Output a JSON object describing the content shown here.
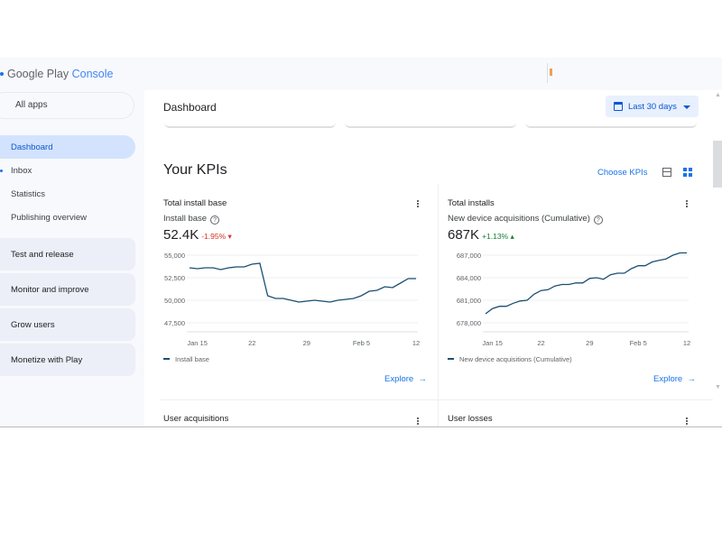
{
  "header": {
    "logo_main": "Google Play",
    "logo_accent": "Console"
  },
  "sidebar": {
    "all_apps": "All apps",
    "items": [
      {
        "label": "Dashboard"
      },
      {
        "label": "Inbox"
      },
      {
        "label": "Statistics"
      },
      {
        "label": "Publishing overview"
      }
    ],
    "groups": [
      {
        "label": "Test and release"
      },
      {
        "label": "Monitor and improve"
      },
      {
        "label": "Grow users"
      },
      {
        "label": "Monetize with Play"
      }
    ]
  },
  "main": {
    "title": "Dashboard",
    "date_range": "Last 30 days",
    "kpis_title": "Your KPIs",
    "choose_kpis": "Choose KPIs",
    "explore": "Explore",
    "explore_arrow": "→",
    "more_cards": [
      "User acquisitions",
      "User losses"
    ]
  },
  "colors": {
    "line": "#1b4f72",
    "accent": "#1a73e8",
    "negative": "#d93025",
    "positive": "#188038"
  },
  "chart_data": [
    {
      "type": "line",
      "title": "Total install base",
      "metric": "Install base",
      "value": "52.4K",
      "change": "-1.95%",
      "change_dir": "down",
      "legend": "Install base",
      "ylim": [
        47500,
        55000
      ],
      "yticks": [
        "55,000",
        "52,500",
        "50,000",
        "47,500"
      ],
      "ytick_values": [
        55000,
        52500,
        50000,
        47500
      ],
      "xticks": [
        "Jan 15",
        "22",
        "29",
        "Feb 5",
        "12"
      ],
      "xtick_index": [
        1,
        8,
        15,
        22,
        29
      ],
      "values": [
        53600,
        53500,
        53600,
        53600,
        53400,
        53600,
        53700,
        53700,
        54000,
        54100,
        50500,
        50200,
        50200,
        50000,
        49800,
        49900,
        50000,
        49900,
        49800,
        50000,
        50100,
        50200,
        50500,
        51000,
        51100,
        51500,
        51400,
        51900,
        52400,
        52400
      ]
    },
    {
      "type": "line",
      "title": "Total installs",
      "metric": "New device acquisitions (Cumulative)",
      "value": "687K",
      "change": "+1.13%",
      "change_dir": "up",
      "legend": "New device acquisitions (Cumulative)",
      "ylim": [
        678000,
        687000
      ],
      "yticks": [
        "687,000",
        "684,000",
        "681,000",
        "678,000"
      ],
      "ytick_values": [
        687000,
        684000,
        681000,
        678000
      ],
      "xticks": [
        "Jan 15",
        "22",
        "29",
        "Feb 5",
        "12"
      ],
      "xtick_index": [
        1,
        8,
        15,
        22,
        29
      ],
      "values": [
        679200,
        679900,
        680200,
        680200,
        680600,
        680900,
        681000,
        681800,
        682300,
        682400,
        682900,
        683100,
        683100,
        683300,
        683300,
        683900,
        684000,
        683800,
        684400,
        684600,
        684600,
        685200,
        685600,
        685600,
        686100,
        686300,
        686500,
        687000,
        687300,
        687300
      ]
    }
  ]
}
